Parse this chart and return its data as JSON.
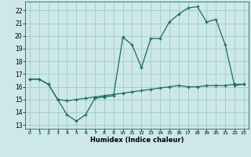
{
  "title": "",
  "xlabel": "Humidex (Indice chaleur)",
  "background_color": "#cce8e8",
  "grid_color": "#aacccc",
  "line_color": "#1a6b5e",
  "xlim": [
    -0.5,
    23.5
  ],
  "ylim": [
    12.7,
    22.7
  ],
  "xticks": [
    0,
    1,
    2,
    3,
    4,
    5,
    6,
    7,
    8,
    9,
    10,
    11,
    12,
    13,
    14,
    15,
    16,
    17,
    18,
    19,
    20,
    21,
    22,
    23
  ],
  "yticks": [
    13,
    14,
    15,
    16,
    17,
    18,
    19,
    20,
    21,
    22
  ],
  "line1_x": [
    0,
    1,
    2,
    3,
    4,
    5,
    6,
    7,
    8,
    9,
    10,
    11,
    12,
    13,
    14,
    15,
    16,
    17,
    18,
    19,
    20,
    21,
    22,
    23
  ],
  "line1_y": [
    16.6,
    16.6,
    16.2,
    15.0,
    13.8,
    13.3,
    13.8,
    15.1,
    15.2,
    15.3,
    19.9,
    19.3,
    17.5,
    19.8,
    19.8,
    21.1,
    21.7,
    22.2,
    22.3,
    21.1,
    21.3,
    19.3,
    16.1,
    16.2
  ],
  "line2_x": [
    0,
    1,
    2,
    3,
    4,
    5,
    6,
    7,
    8,
    9,
    10,
    11,
    12,
    13,
    14,
    15,
    16,
    17,
    18,
    19,
    20,
    21,
    22,
    23
  ],
  "line2_y": [
    16.6,
    16.6,
    16.2,
    15.0,
    14.9,
    15.0,
    15.1,
    15.2,
    15.3,
    15.4,
    15.5,
    15.6,
    15.7,
    15.8,
    15.9,
    16.0,
    16.1,
    16.0,
    16.0,
    16.1,
    16.1,
    16.1,
    16.2,
    16.2
  ]
}
